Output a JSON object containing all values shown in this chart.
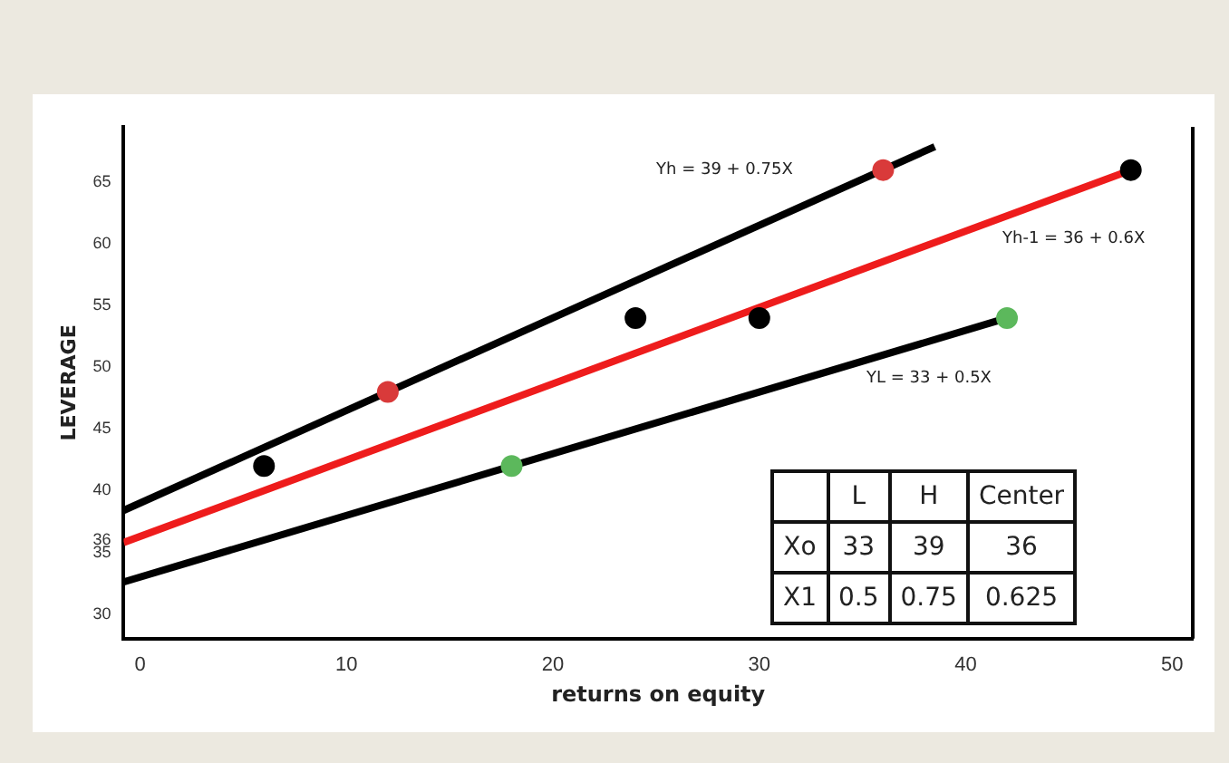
{
  "chart_data": {
    "type": "scatter",
    "xlabel": "returns on equity",
    "ylabel": "LEVERAGE",
    "xlim": [
      -0.8,
      51
    ],
    "xticks": [
      0,
      10,
      20,
      30,
      40,
      50
    ],
    "ylim": [
      28,
      69.5
    ],
    "yticks": [
      30,
      35,
      36,
      40,
      45,
      50,
      55,
      60,
      65
    ],
    "grid": false,
    "legend": false,
    "marker": "circle",
    "series": [
      {
        "type": "line",
        "color": "#000000",
        "x": [
          -0.8,
          38.5
        ],
        "values": [
          38.4,
          67.9
        ],
        "marker": "none"
      },
      {
        "type": "line",
        "color": "#ee1c1c",
        "x": [
          -0.8,
          48
        ],
        "values": [
          35.8,
          66
        ],
        "marker": "none"
      },
      {
        "type": "line",
        "color": "#000000",
        "x": [
          -0.8,
          42
        ],
        "values": [
          32.6,
          54
        ],
        "marker": "none"
      },
      {
        "color": "#000000",
        "x": [
          6,
          24,
          30,
          48
        ],
        "values": [
          42,
          54,
          54,
          66
        ]
      },
      {
        "color": "#d93a3a",
        "x": [
          12,
          36
        ],
        "values": [
          48,
          66
        ]
      },
      {
        "color": "#5cb85c",
        "x": [
          18,
          42
        ],
        "values": [
          42,
          54
        ]
      }
    ],
    "annotations": [
      "Yh = 39 + 0.75X",
      "Yh-1 = 36 + 0.6X",
      "YL = 33 + 0.5X",
      "L",
      "H",
      "Center",
      "Xo",
      "33",
      "39",
      "36",
      "X1",
      "0.5",
      "0.75",
      "0.625"
    ]
  }
}
